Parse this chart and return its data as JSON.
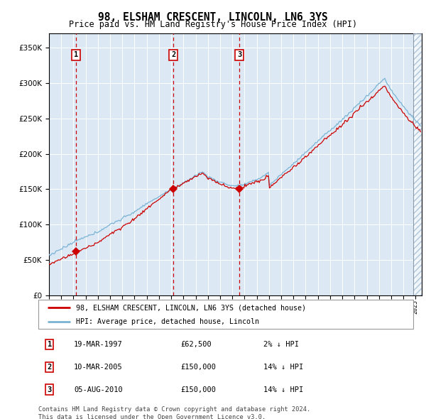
{
  "title": "98, ELSHAM CRESCENT, LINCOLN, LN6 3YS",
  "subtitle": "Price paid vs. HM Land Registry's House Price Index (HPI)",
  "footnote": "Contains HM Land Registry data © Crown copyright and database right 2024.\nThis data is licensed under the Open Government Licence v3.0.",
  "legend_line1": "98, ELSHAM CRESCENT, LINCOLN, LN6 3YS (detached house)",
  "legend_line2": "HPI: Average price, detached house, Lincoln",
  "transactions": [
    {
      "num": 1,
      "date": "19-MAR-1997",
      "price": 62500,
      "pct": "2%",
      "dir": "↓",
      "year_x": 1997.21
    },
    {
      "num": 2,
      "date": "10-MAR-2005",
      "price": 150000,
      "pct": "14%",
      "dir": "↓",
      "year_x": 2005.19
    },
    {
      "num": 3,
      "date": "05-AUG-2010",
      "price": 150000,
      "pct": "14%",
      "dir": "↓",
      "year_x": 2010.59
    }
  ],
  "ylim": [
    0,
    370000
  ],
  "xlim_start": 1995.0,
  "xlim_end": 2025.5,
  "plot_bg": "#dce9f5",
  "hpi_color": "#7ab3d4",
  "price_color": "#cc0000",
  "marker_color": "#cc0000",
  "dashed_color": "#cc0000",
  "grid_color": "#ffffff",
  "hatch_color": "#a0b8cc"
}
